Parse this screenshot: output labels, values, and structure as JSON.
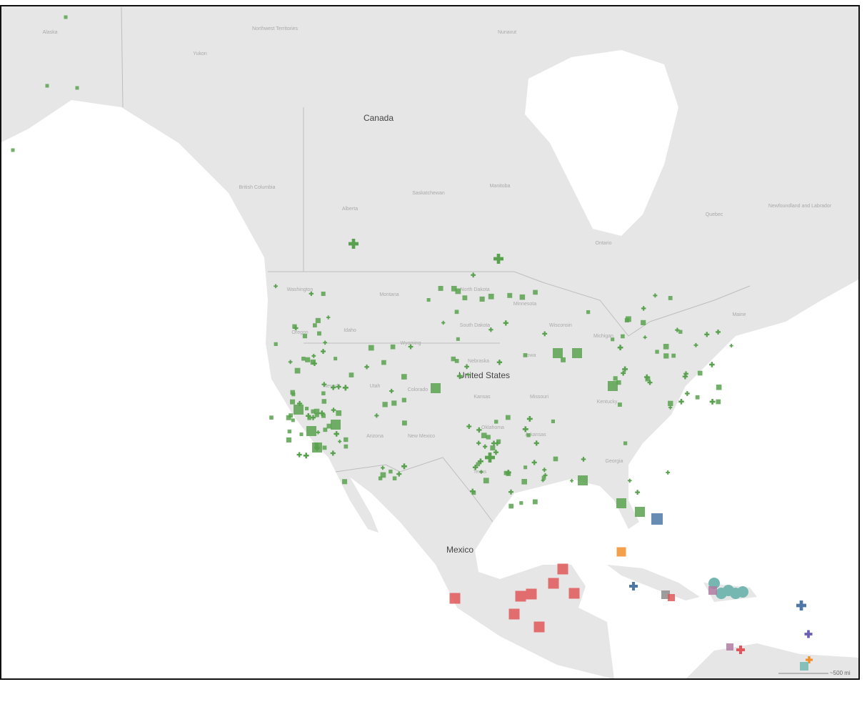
{
  "map": {
    "countries": [
      "Canada",
      "United States",
      "Mexico"
    ],
    "regions": [
      "Alaska",
      "Yukon",
      "Northwest Territories",
      "Nunavut",
      "British Columbia",
      "Alberta",
      "Saskatchewan",
      "Manitoba",
      "Ontario",
      "Quebec",
      "Newfoundland and Labrador",
      "Washington",
      "Oregon",
      "Idaho",
      "Montana",
      "Wyoming",
      "Nevada",
      "Utah",
      "Colorado",
      "Arizona",
      "New Mexico",
      "Texas",
      "Kansas",
      "Nebraska",
      "North Dakota",
      "South Dakota",
      "Minnesota",
      "Iowa",
      "Missouri",
      "Arkansas",
      "Oklahoma",
      "Wisconsin",
      "Michigan",
      "Kentucky",
      "Georgia",
      "Maine"
    ],
    "scale": "~500 mi"
  }
}
